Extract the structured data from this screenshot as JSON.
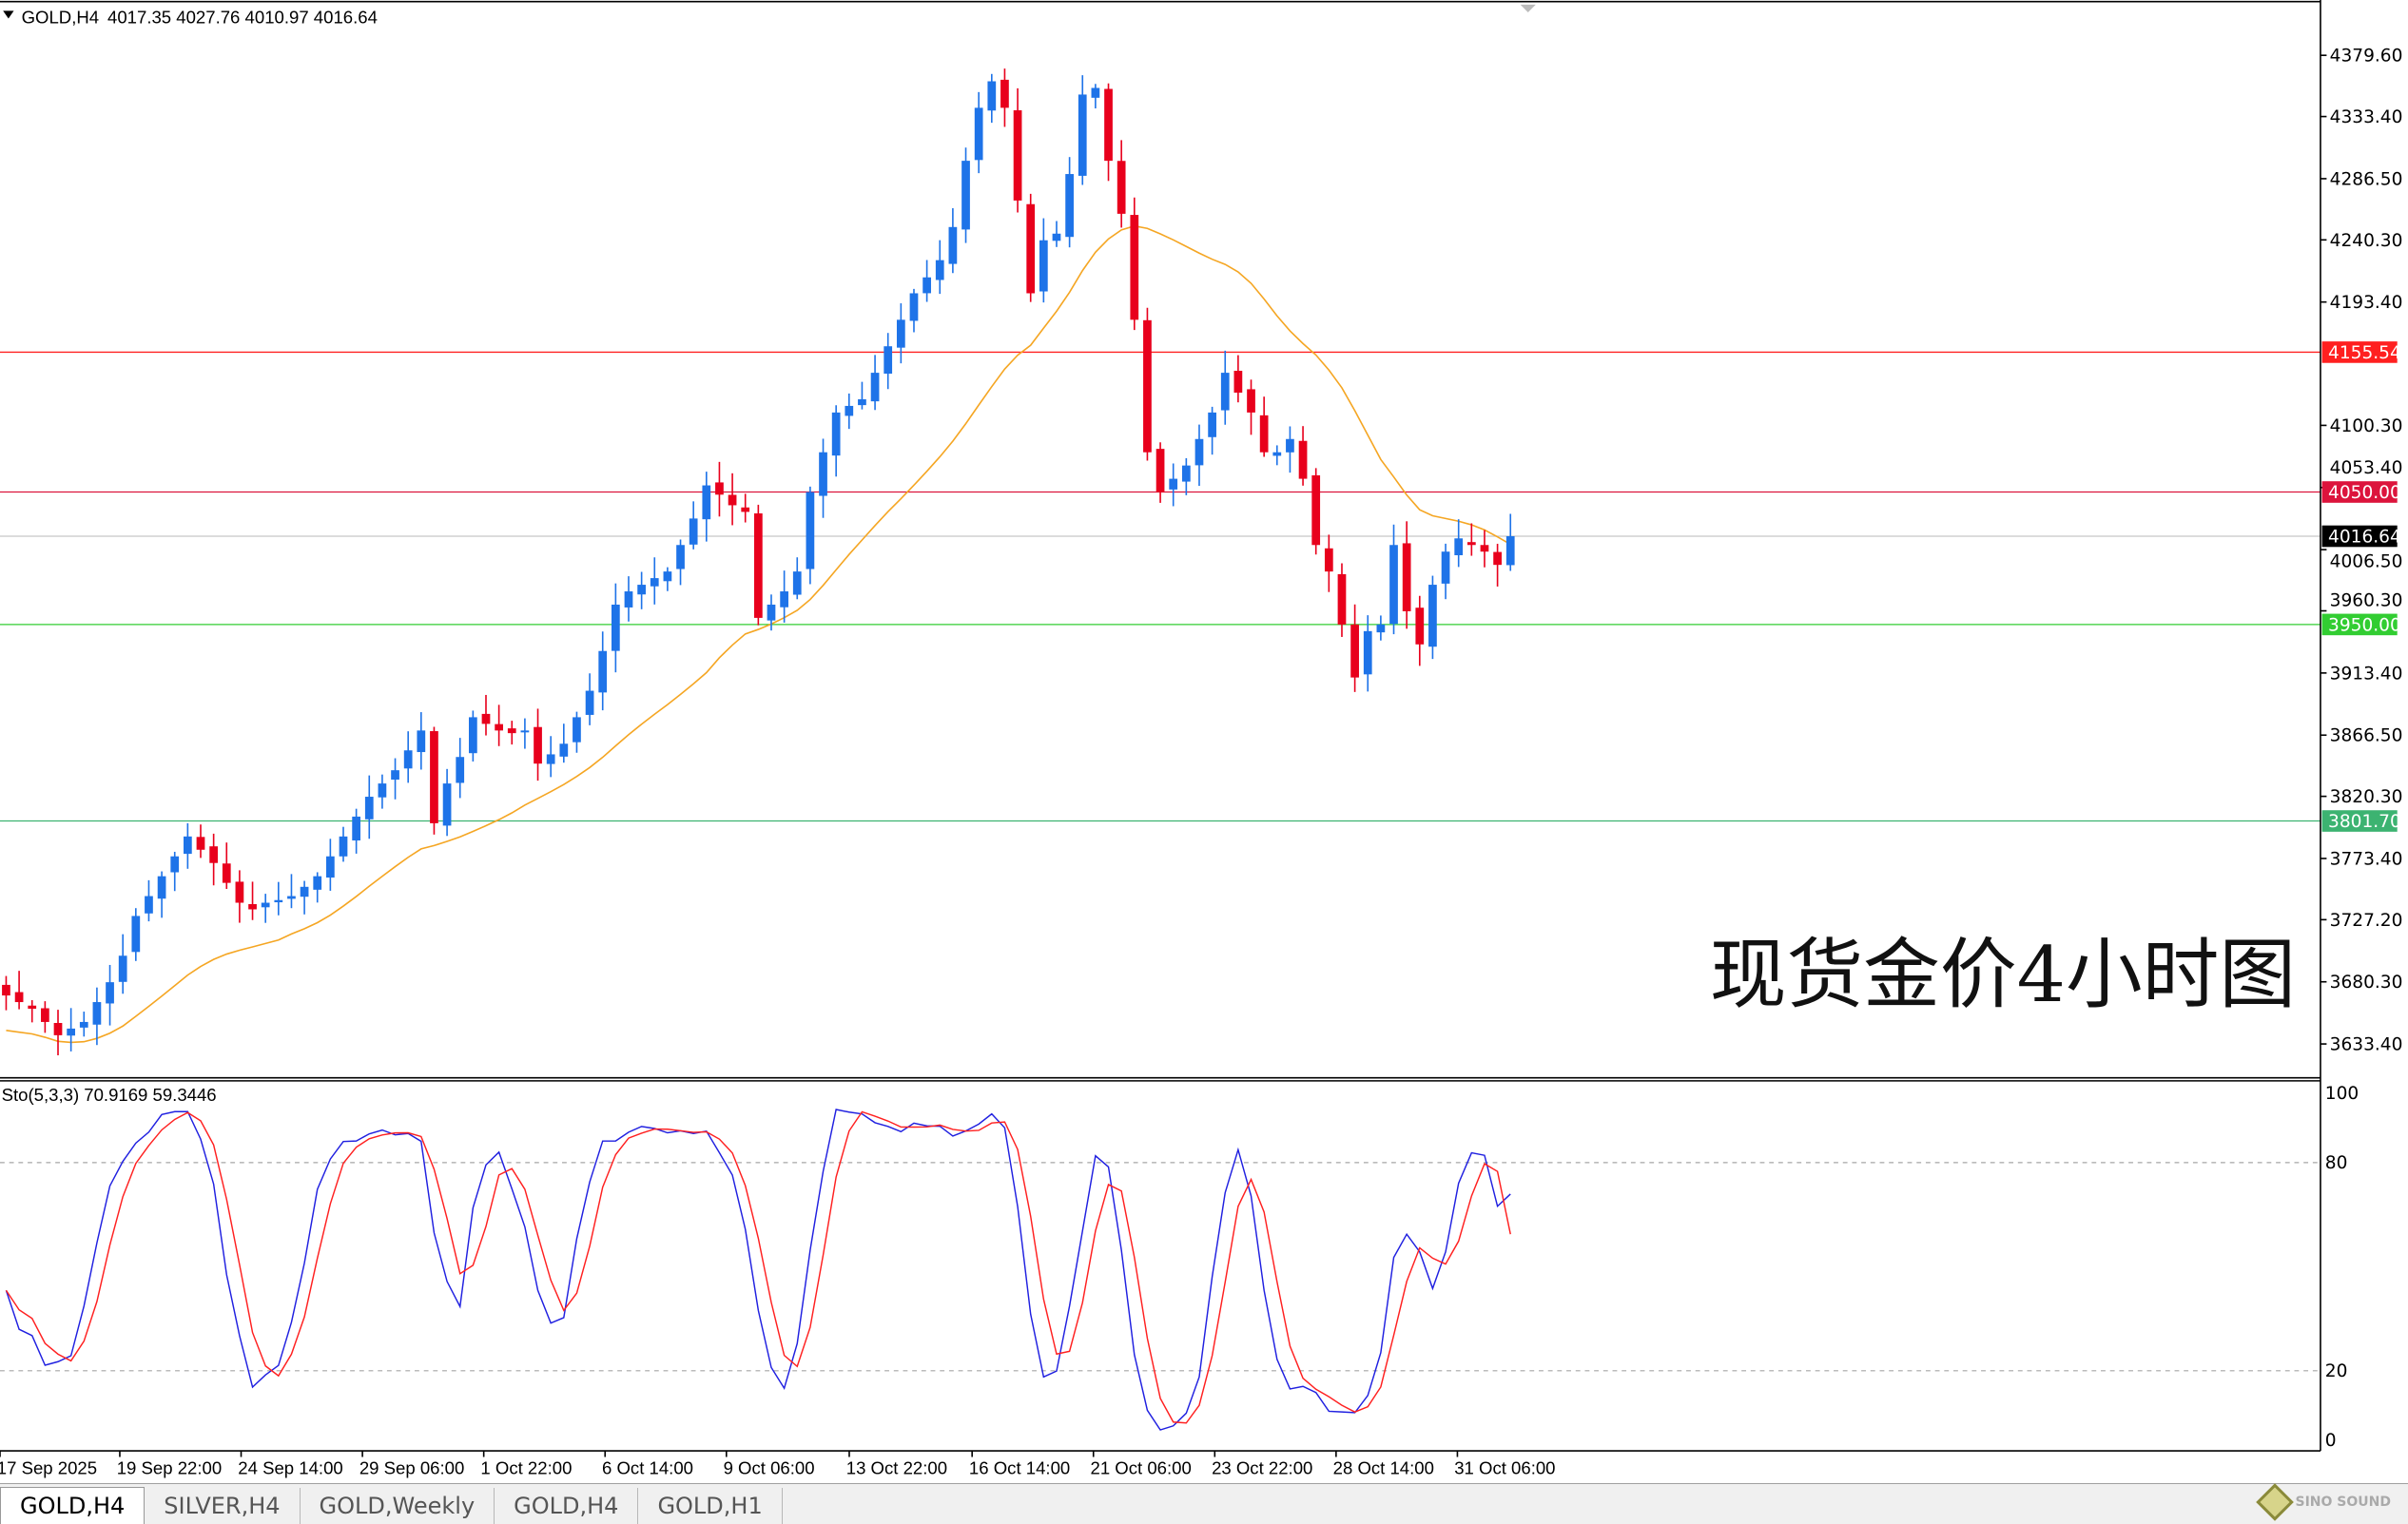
{
  "header": {
    "symbol": "GOLD,H4",
    "ohlc": "4017.35 4027.76 4010.97 4016.64"
  },
  "overlay_title": "现货金价4小时图",
  "price_axis": {
    "ticks": [
      "4379.60",
      "4333.40",
      "4286.50",
      "4240.30",
      "4193.40",
      "4100.30",
      "4053.40",
      "4006.50",
      "3960.30",
      "3913.40",
      "3866.50",
      "3820.30",
      "3773.40",
      "3727.20",
      "3680.30",
      "3633.40"
    ]
  },
  "levels": [
    {
      "value": 4155.54,
      "label": "4155.54",
      "color": "#ff2020"
    },
    {
      "value": 4050.0,
      "label": "4050.00",
      "color": "#dc143c"
    },
    {
      "value": 4016.64,
      "label": "4016.64",
      "color": "#000000",
      "line": "#c8c8c8"
    },
    {
      "value": 3950.0,
      "label": "3950.00",
      "color": "#32cd32"
    },
    {
      "value": 3801.7,
      "label": "3801.70",
      "color": "#3cb371"
    }
  ],
  "stochastic": {
    "label": "Sto(5,3,3) 70.9169 59.3446",
    "levels": [
      "100",
      "80",
      "20",
      "0"
    ],
    "k_color": "#2020e0",
    "d_color": "#ff2020"
  },
  "date_axis": [
    "17 Sep 2025",
    "19 Sep 22:00",
    "24 Sep 14:00",
    "29 Sep 06:00",
    "1 Oct 22:00",
    "6 Oct 14:00",
    "9 Oct 06:00",
    "13 Oct 22:00",
    "16 Oct 14:00",
    "21 Oct 06:00",
    "23 Oct 22:00",
    "28 Oct 14:00",
    "31 Oct 06:00"
  ],
  "tabs": [
    {
      "label": "GOLD,H4",
      "active": true
    },
    {
      "label": "SILVER,H4"
    },
    {
      "label": "GOLD,Weekly"
    },
    {
      "label": "GOLD,H4"
    },
    {
      "label": "GOLD,H1"
    }
  ],
  "colors": {
    "up": "#1e73e8",
    "down": "#e8001c",
    "ma": "#f5a623"
  },
  "logo": "SINO SOUND",
  "chart_data": {
    "type": "candlestick",
    "symbol": "GOLD",
    "timeframe": "H4",
    "ylim": [
      3610,
      4400
    ],
    "closes": [
      3670,
      3665,
      3660,
      3650,
      3640,
      3645,
      3650,
      3665,
      3680,
      3700,
      3730,
      3745,
      3760,
      3775,
      3790,
      3780,
      3770,
      3755,
      3740,
      3735,
      3740,
      3742,
      3745,
      3752,
      3760,
      3775,
      3790,
      3805,
      3820,
      3830,
      3840,
      3855,
      3870,
      3800,
      3830,
      3850,
      3880,
      3875,
      3870,
      3868,
      3870,
      3845,
      3852,
      3860,
      3880,
      3900,
      3930,
      3965,
      3975,
      3980,
      3985,
      3990,
      4010,
      4030,
      4055,
      4048,
      4040,
      4035,
      3955,
      3965,
      3975,
      3990,
      4050,
      4080,
      4110,
      4115,
      4120,
      4140,
      4160,
      4180,
      4200,
      4212,
      4225,
      4250,
      4300,
      4340,
      4360,
      4340,
      4270,
      4200,
      4240,
      4245,
      4290,
      4350,
      4355,
      4300,
      4260,
      4180,
      4080,
      4050,
      4060,
      4070,
      4090,
      4110,
      4140,
      4125,
      4110,
      4080,
      4080,
      4090,
      4060,
      4010,
      3990,
      3950,
      3910,
      3945,
      3950,
      4010,
      3960,
      3935,
      3980,
      4005,
      4015,
      4010,
      4005,
      3995,
      4016.64
    ],
    "moving_average": {
      "visible": true
    },
    "horizontal_levels": [
      4155.54,
      4050.0,
      4016.64,
      3950.0,
      3801.7
    ],
    "stochastic": {
      "params": [
        5,
        3,
        3
      ],
      "k": 70.9169,
      "d": 59.3446,
      "ylim": [
        0,
        100
      ],
      "levels": [
        20,
        80
      ]
    }
  }
}
